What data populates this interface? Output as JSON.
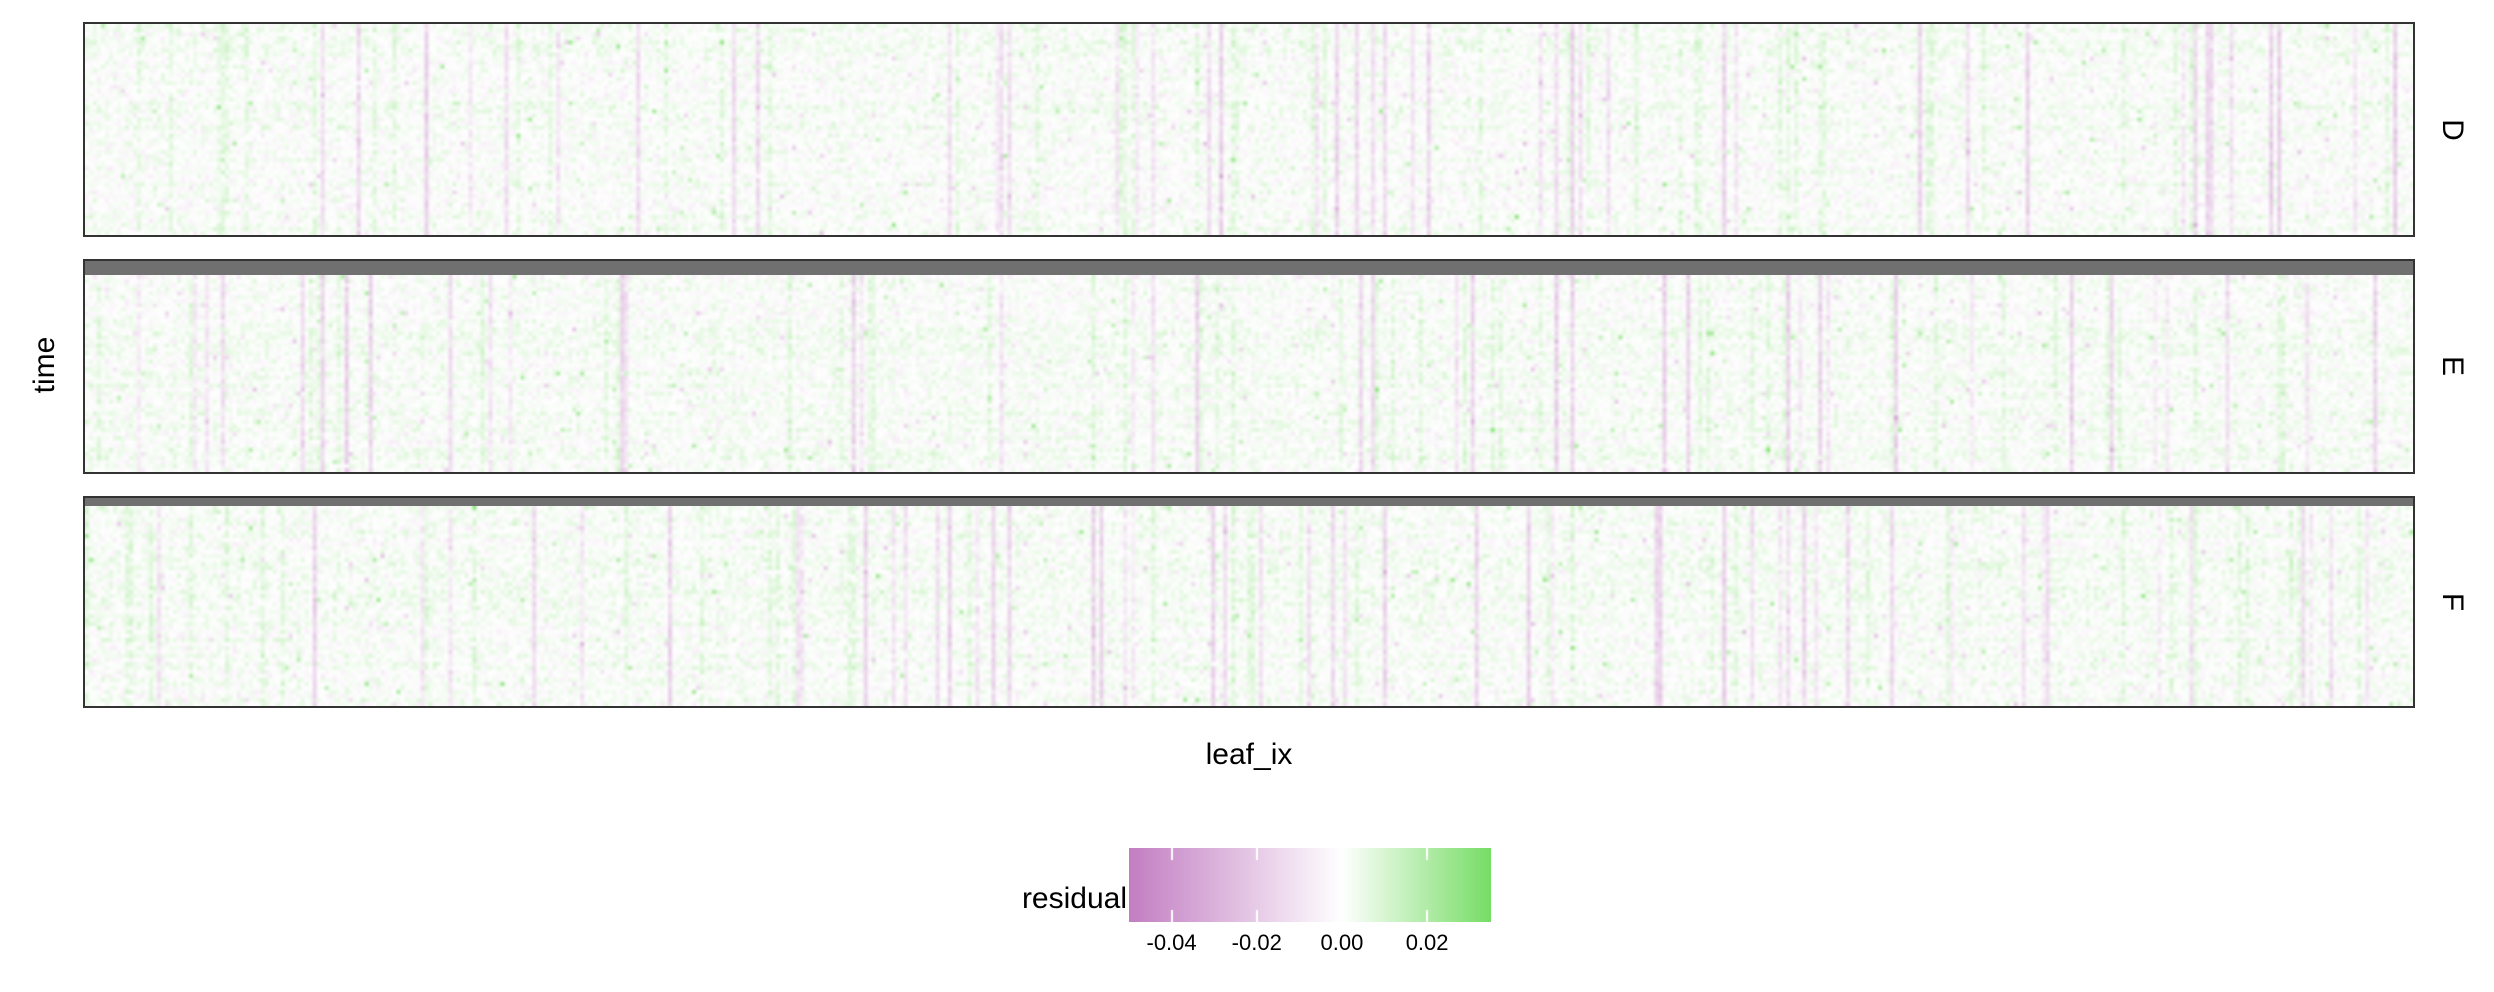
{
  "chart_data": {
    "type": "heatmap",
    "xlabel": "leaf_ix",
    "ylabel": "time",
    "facets": [
      "D",
      "E",
      "F"
    ],
    "fill_label": "residual",
    "color_scale": {
      "low_color": "#c27ec2",
      "mid_color": "#ffffff",
      "high_color": "#77dd66",
      "range": [
        -0.05,
        0.035
      ],
      "midpoint": 0.0,
      "ticks": [
        -0.04,
        -0.02,
        0.0,
        0.02
      ],
      "tick_labels": [
        "-0.04",
        "-0.02",
        "0.00",
        "0.02"
      ]
    },
    "grid": false,
    "legend_position": "bottom"
  }
}
